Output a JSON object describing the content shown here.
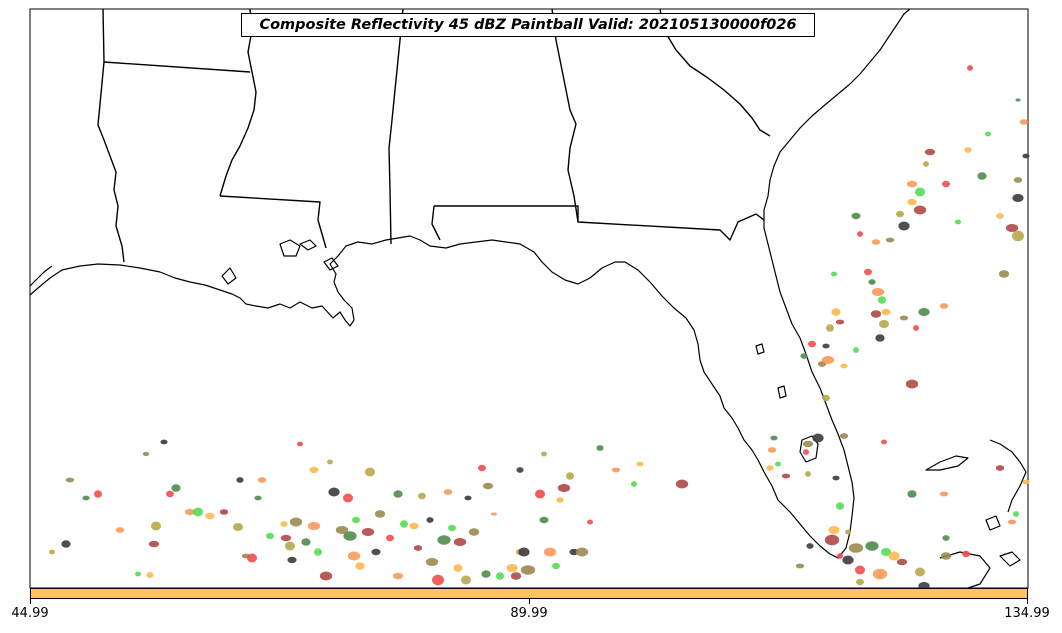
{
  "title": "Composite Reflectivity 45 dBZ Paintball Valid: 202105130000f026",
  "colorbar": {
    "color": "#ffc266",
    "ticks": [
      "44.99",
      "89.99",
      "134.99"
    ]
  },
  "member_colors": [
    "#f24d4d",
    "#fb9a5a",
    "#fdb84f",
    "#b8a94a",
    "#9a8a50",
    "#4e8c4e",
    "#54dd54",
    "#b04848",
    "#3c3c3c"
  ]
}
